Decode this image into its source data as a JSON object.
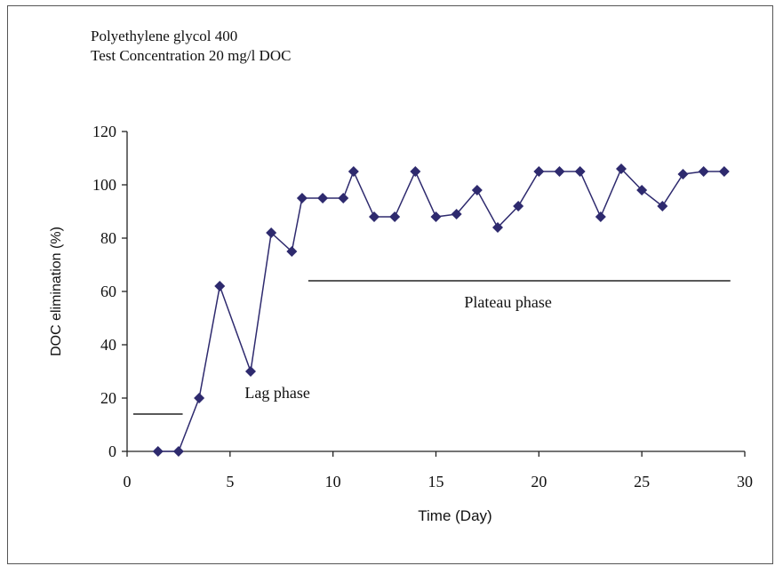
{
  "caption": {
    "line1": "Polyethylene glycol 400",
    "line2": "Test Concentration 20 mg/l DOC"
  },
  "chart_data": {
    "type": "line",
    "xlabel": "Time (Day)",
    "ylabel": "DOC elimination (%)",
    "xlim": [
      0,
      30
    ],
    "ylim": [
      0,
      120
    ],
    "x_ticks": [
      0,
      5,
      10,
      15,
      20,
      25,
      30
    ],
    "y_ticks": [
      0,
      20,
      40,
      60,
      80,
      100,
      120
    ],
    "grid": false,
    "marker": "diamond",
    "color": "#2e2a6e",
    "series": [
      {
        "x": [
          1.5,
          2.5,
          3.5,
          4.5,
          6,
          7,
          8,
          8.5,
          9.5,
          10.5,
          11,
          12,
          13,
          14,
          15,
          16,
          17,
          18,
          19,
          20,
          21,
          22,
          23,
          24,
          25,
          26,
          27,
          28,
          29
        ],
        "y": [
          0,
          0,
          20,
          62,
          30,
          82,
          75,
          95,
          95,
          95,
          105,
          88,
          88,
          105,
          88,
          89,
          98,
          84,
          92,
          105,
          105,
          105,
          88,
          106,
          98,
          92,
          104,
          105,
          105
        ]
      }
    ],
    "annotations": [
      {
        "text": "Lag phase",
        "x": 7.3,
        "y": 22
      },
      {
        "text": "Plateau phase",
        "x": 18.5,
        "y": 56
      }
    ],
    "phase_lines": [
      {
        "x_start": 0.3,
        "x_end": 2.7,
        "y": 14
      },
      {
        "x_start": 8.8,
        "x_end": 29.3,
        "y": 64
      }
    ]
  }
}
